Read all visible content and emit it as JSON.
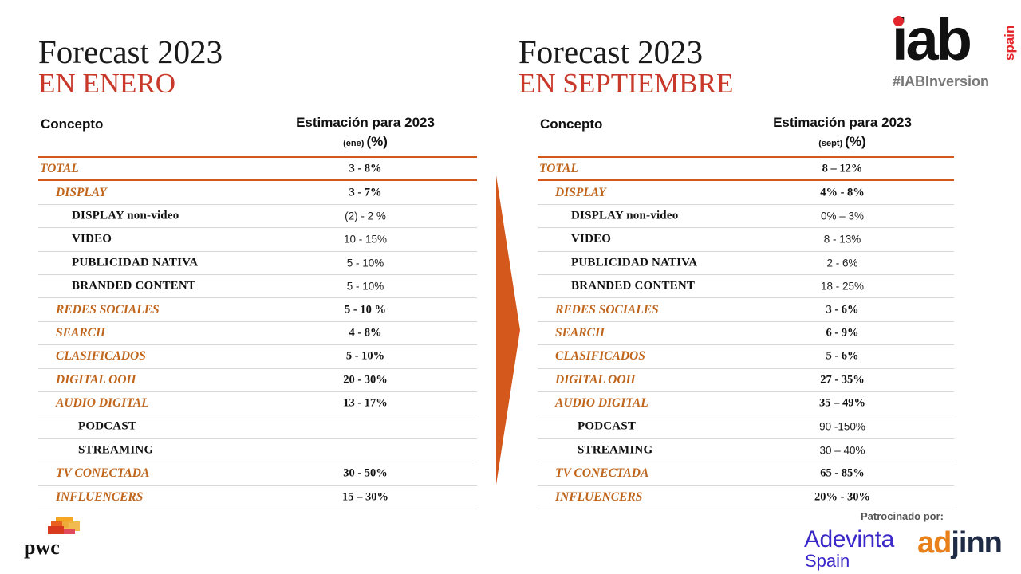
{
  "left": {
    "title": "Forecast 2023",
    "subtitle": "EN ENERO",
    "header": {
      "concept": "Concepto",
      "estimate": "Estimación para 2023",
      "period": "(ene)",
      "unit": "(%)"
    },
    "rows": [
      {
        "label": "TOTAL",
        "value": "3 - 8%"
      },
      {
        "label": "DISPLAY",
        "value": "3 - 7%"
      },
      {
        "label": "DISPLAY non-video",
        "value": "(2) - 2 %"
      },
      {
        "label": "VIDEO",
        "value": "10 - 15%"
      },
      {
        "label": "PUBLICIDAD NATIVA",
        "value": "5 - 10%"
      },
      {
        "label": "BRANDED CONTENT",
        "value": "5 - 10%"
      },
      {
        "label": "REDES SOCIALES",
        "value": "5 - 10 %"
      },
      {
        "label": "SEARCH",
        "value": "4 - 8%"
      },
      {
        "label": "CLASIFICADOS",
        "value": "5 - 10%"
      },
      {
        "label": "DIGITAL OOH",
        "value": "20 - 30%"
      },
      {
        "label": "AUDIO DIGITAL",
        "value": "13 - 17%"
      },
      {
        "label": "PODCAST",
        "value": ""
      },
      {
        "label": "STREAMING",
        "value": ""
      },
      {
        "label": "TV CONECTADA",
        "value": "30 - 50%"
      },
      {
        "label": "INFLUENCERS",
        "value": "15 – 30%"
      }
    ]
  },
  "right": {
    "title": "Forecast 2023",
    "subtitle": "EN SEPTIEMBRE",
    "header": {
      "concept": "Concepto",
      "estimate": "Estimación para 2023",
      "period": "(sept)",
      "unit": "(%)"
    },
    "rows": [
      {
        "label": "TOTAL",
        "value": "8 – 12%"
      },
      {
        "label": "DISPLAY",
        "value": "4% - 8%"
      },
      {
        "label": "DISPLAY non-video",
        "value": "0% – 3%"
      },
      {
        "label": "VIDEO",
        "value": "8 - 13%"
      },
      {
        "label": "PUBLICIDAD NATIVA",
        "value": "2 - 6%"
      },
      {
        "label": "BRANDED CONTENT",
        "value": "18 - 25%"
      },
      {
        "label": "REDES SOCIALES",
        "value": "3 - 6%"
      },
      {
        "label": "SEARCH",
        "value": "6 - 9%"
      },
      {
        "label": "CLASIFICADOS",
        "value": "5 - 6%"
      },
      {
        "label": "DIGITAL OOH",
        "value": "27 - 35%"
      },
      {
        "label": "AUDIO DIGITAL",
        "value": "35 – 49%"
      },
      {
        "label": "PODCAST",
        "value": "90 -150%"
      },
      {
        "label": "STREAMING",
        "value": "30 – 40%"
      },
      {
        "label": "TV CONECTADA",
        "value": "65 - 85%"
      },
      {
        "label": "INFLUENCERS",
        "value": "20% - 30%"
      }
    ]
  },
  "branding": {
    "iab_logo": "iab",
    "iab_country": "spain",
    "hashtag": "#IABInversion",
    "pwc_logo": "pwc",
    "sponsored_label": "Patrocinado por:",
    "adevinta": "Adevinta",
    "adevinta_sub": "Spain",
    "adjinn_a": "ad",
    "adjinn_b": "jinn"
  },
  "colors": {
    "accent_red": "#c8392b",
    "category_orange": "#c0651c",
    "rule_orange": "#d4571c",
    "arrow_orange": "#d4571c",
    "iab_red": "#e3262c",
    "adevinta_blue": "#3b28c8",
    "adjinn_orange": "#e8811c"
  }
}
